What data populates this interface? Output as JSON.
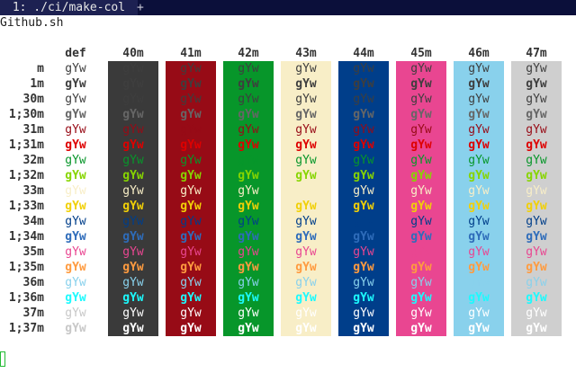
{
  "tab_bar": {
    "tab_label": " 1: ./ci/make-col ",
    "add_tab_label": "+",
    "background": "#0b0f3a",
    "active_tab_background": "#1d2152"
  },
  "title": "Github.sh",
  "sample_text": "gYw",
  "column_headers": [
    "def",
    "40m",
    "41m",
    "42m",
    "43m",
    "44m",
    "45m",
    "46m",
    "47m"
  ],
  "background_colors": [
    "#ffffff",
    "#3a3a3a",
    "#970b16",
    "#07962a",
    "#f8eec7",
    "#003e8a",
    "#e94691",
    "#89d1ec",
    "#cfcfcf"
  ],
  "rows": [
    {
      "label": "m",
      "bold": false,
      "fg": "#3e3e3e"
    },
    {
      "label": "1m",
      "bold": true,
      "fg": "#3e3e3e"
    },
    {
      "label": "30m",
      "bold": false,
      "fg": "#3e3e3e"
    },
    {
      "label": "1;30m",
      "bold": true,
      "fg": "#666666"
    },
    {
      "label": "31m",
      "bold": false,
      "fg": "#970b16"
    },
    {
      "label": "1;31m",
      "bold": true,
      "fg": "#de0000"
    },
    {
      "label": "32m",
      "bold": false,
      "fg": "#07962a"
    },
    {
      "label": "1;32m",
      "bold": true,
      "fg": "#87d500"
    },
    {
      "label": "33m",
      "bold": false,
      "fg": "#f8eec7"
    },
    {
      "label": "1;33m",
      "bold": true,
      "fg": "#f1d007"
    },
    {
      "label": "34m",
      "bold": false,
      "fg": "#003e8a"
    },
    {
      "label": "1;34m",
      "bold": true,
      "fg": "#2e6cba"
    },
    {
      "label": "35m",
      "bold": false,
      "fg": "#e94691"
    },
    {
      "label": "1;35m",
      "bold": true,
      "fg": "#ff9b3f"
    },
    {
      "label": "36m",
      "bold": false,
      "fg": "#89d1ec"
    },
    {
      "label": "1;36m",
      "bold": true,
      "fg": "#1cfafe"
    },
    {
      "label": "37m",
      "bold": false,
      "fg": "#ffffff"
    },
    {
      "label": "1;37m",
      "bold": true,
      "fg": "#ffffff"
    }
  ]
}
